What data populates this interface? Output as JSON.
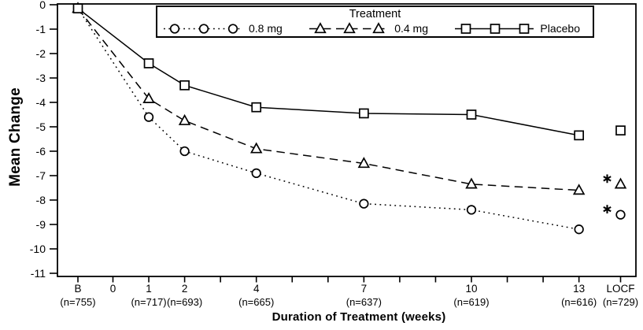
{
  "chart_data": {
    "type": "line",
    "title": "",
    "xlabel": "Duration of Treatment (weeks)",
    "ylabel": "Mean Change",
    "ylim": [
      -11,
      0
    ],
    "yticks": [
      0,
      -1,
      -2,
      -3,
      -4,
      -5,
      -6,
      -7,
      -8,
      -9,
      -10,
      -11
    ],
    "grid": "off",
    "legend": {
      "title": "Treatment",
      "position": "top-inside"
    },
    "x_ticks": [
      {
        "id": "B",
        "label": "B",
        "n": "(n=755)"
      },
      {
        "id": "0",
        "label": "0",
        "n": ""
      },
      {
        "id": "1",
        "label": "1",
        "n": "(n=717)"
      },
      {
        "id": "2",
        "label": "2",
        "n": "(n=693)"
      },
      {
        "id": "3",
        "label": "",
        "n": ""
      },
      {
        "id": "4",
        "label": "4",
        "n": "(n=665)"
      },
      {
        "id": "5",
        "label": "",
        "n": ""
      },
      {
        "id": "6",
        "label": "",
        "n": ""
      },
      {
        "id": "7",
        "label": "7",
        "n": "(n=637)"
      },
      {
        "id": "8",
        "label": "",
        "n": ""
      },
      {
        "id": "9",
        "label": "",
        "n": ""
      },
      {
        "id": "10",
        "label": "10",
        "n": "(n=619)"
      },
      {
        "id": "11",
        "label": "",
        "n": ""
      },
      {
        "id": "12",
        "label": "",
        "n": ""
      },
      {
        "id": "13",
        "label": "13",
        "n": "(n=616)"
      },
      {
        "id": "LOCF",
        "label": "LOCF",
        "n": "(n=729)"
      }
    ],
    "series": [
      {
        "name": "0.8 mg",
        "marker": "circle",
        "line_style": "dotted",
        "points": [
          {
            "x": "B",
            "y": -0.15
          },
          {
            "x": "1",
            "y": -4.6
          },
          {
            "x": "2",
            "y": -6.0
          },
          {
            "x": "4",
            "y": -6.9
          },
          {
            "x": "7",
            "y": -8.15
          },
          {
            "x": "10",
            "y": -8.4
          },
          {
            "x": "13",
            "y": -9.2
          }
        ],
        "locf": {
          "x": "LOCF",
          "y": -8.6,
          "annotation": "*"
        }
      },
      {
        "name": "0.4 mg",
        "marker": "triangle",
        "line_style": "dashed",
        "points": [
          {
            "x": "B",
            "y": -0.15
          },
          {
            "x": "1",
            "y": -3.85
          },
          {
            "x": "2",
            "y": -4.75
          },
          {
            "x": "4",
            "y": -5.9
          },
          {
            "x": "7",
            "y": -6.5
          },
          {
            "x": "10",
            "y": -7.35
          },
          {
            "x": "13",
            "y": -7.6
          }
        ],
        "locf": {
          "x": "LOCF",
          "y": -7.35,
          "annotation": "*"
        }
      },
      {
        "name": "Placebo",
        "marker": "square",
        "line_style": "solid",
        "points": [
          {
            "x": "B",
            "y": -0.15
          },
          {
            "x": "1",
            "y": -2.4
          },
          {
            "x": "2",
            "y": -3.3
          },
          {
            "x": "4",
            "y": -4.2
          },
          {
            "x": "7",
            "y": -4.45
          },
          {
            "x": "10",
            "y": -4.5
          },
          {
            "x": "13",
            "y": -5.35
          }
        ],
        "locf": {
          "x": "LOCF",
          "y": -5.15,
          "annotation": ""
        }
      }
    ],
    "colors": {
      "foreground": "#000000",
      "background": "#ffffff"
    }
  }
}
